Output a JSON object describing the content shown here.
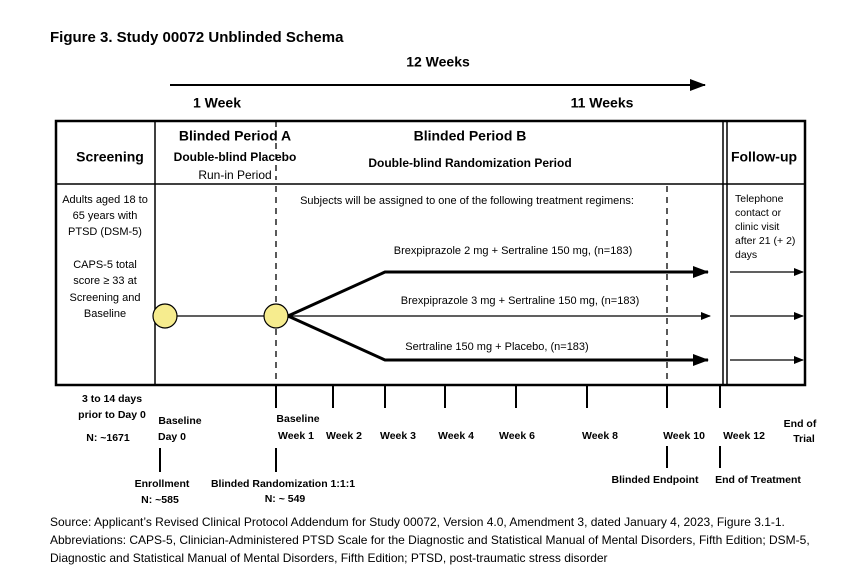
{
  "figure_title": "Figure 3. Study 00072 Unblinded Schema",
  "duration": {
    "total": "12 Weeks",
    "period_a": "1 Week",
    "period_b": "11 Weeks"
  },
  "headers": {
    "screening": "Screening",
    "period_a": {
      "title": "Blinded Period A",
      "subtitle": [
        "Double-blind Placebo",
        "Run-in Period"
      ]
    },
    "period_b": {
      "title": "Blinded Period B",
      "subtitle": "Double-blind Randomization Period"
    },
    "follow_up": "Follow-up"
  },
  "screening_criteria": [
    "Adults aged 18 to",
    "65 years with",
    "PTSD (DSM-5)",
    "CAPS-5 total",
    "score ≥ 33 at",
    "Screening and",
    "Baseline"
  ],
  "assignment_note": "Subjects will be assigned to one of the following treatment regimens:",
  "regimens": [
    "Brexpiprazole 2 mg + Sertraline 150 mg, (n=183)",
    "Brexpiprazole 3 mg + Sertraline 150 mg, (n=183)",
    "Sertraline 150 mg  + Placebo,  (n=183)"
  ],
  "follow_up_note": [
    "Telephone",
    "contact or",
    "clinic visit",
    "after 21 (+ 2)",
    "days"
  ],
  "timeline": {
    "screening": [
      "3 to 14 days",
      "prior to Day 0",
      "N: ~1671"
    ],
    "baseline_day0": [
      "Baseline",
      "Day 0"
    ],
    "baseline_week1": [
      "Baseline",
      "Week 1"
    ],
    "weeks": [
      "Week 2",
      "Week 3",
      "Week 4",
      "Week 6",
      "Week 8",
      "Week 10",
      "Week 12"
    ],
    "end_of_trial": [
      "End of",
      "Trial"
    ]
  },
  "milestones": {
    "enrollment": [
      "Enrollment",
      "N: ~585"
    ],
    "randomization": [
      "Blinded Randomization  1:1:1",
      "N: ~ 549"
    ],
    "endpoint": "Blinded Endpoint",
    "end_of_treatment": "End of Treatment"
  },
  "source": [
    "Source: Applicant’s Revised Clinical Protocol Addendum for Study 00072, Version 4.0, Amendment 3, dated January 4, 2023, Figure 3.1-1.",
    "Abbreviations: CAPS-5, Clinician-Administered PTSD Scale for the Diagnostic and Statistical Manual of Mental Disorders, Fifth Edition; DSM-5,",
    "Diagnostic and Statistical Manual of Mental Disorders, Fifth Edition; PTSD, post-traumatic stress disorder"
  ]
}
